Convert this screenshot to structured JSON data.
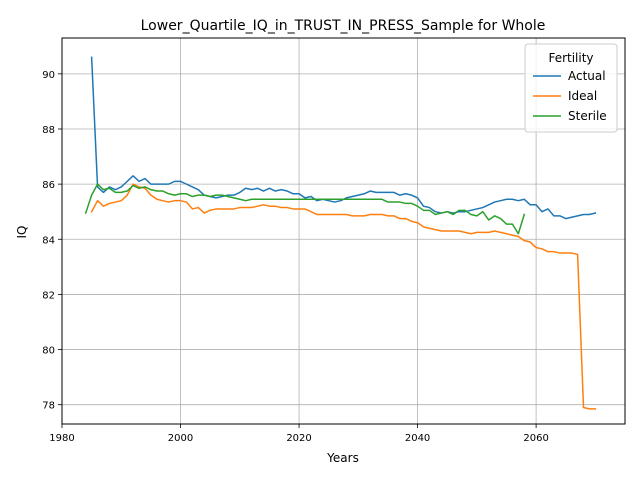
{
  "chart_data": {
    "type": "line",
    "title": "Lower_Quartile_IQ_in_TRUST_IN_PRESS_Sample for Whole",
    "xlabel": "Years",
    "ylabel": "IQ",
    "xlim": [
      1980,
      2075
    ],
    "ylim": [
      77.3,
      91.3
    ],
    "xticks": [
      1980,
      2000,
      2020,
      2040,
      2060
    ],
    "yticks": [
      78,
      80,
      82,
      84,
      86,
      88,
      90
    ],
    "grid": true,
    "legend": {
      "title": "Fertility",
      "placement": "top-right"
    },
    "series": [
      {
        "name": "Actual",
        "color": "#1f77b4",
        "points": [
          [
            1985,
            90.6
          ],
          [
            1986,
            85.9
          ],
          [
            1987,
            85.7
          ],
          [
            1988,
            85.9
          ],
          [
            1989,
            85.8
          ],
          [
            1990,
            85.9
          ],
          [
            1991,
            86.1
          ],
          [
            1992,
            86.3
          ],
          [
            1993,
            86.1
          ],
          [
            1994,
            86.2
          ],
          [
            1995,
            86.0
          ],
          [
            1996,
            86.0
          ],
          [
            1997,
            86.0
          ],
          [
            1998,
            86.0
          ],
          [
            1999,
            86.1
          ],
          [
            2000,
            86.1
          ],
          [
            2001,
            86.0
          ],
          [
            2002,
            85.9
          ],
          [
            2003,
            85.8
          ],
          [
            2004,
            85.6
          ],
          [
            2005,
            85.55
          ],
          [
            2006,
            85.5
          ],
          [
            2007,
            85.55
          ],
          [
            2008,
            85.6
          ],
          [
            2009,
            85.6
          ],
          [
            2010,
            85.7
          ],
          [
            2011,
            85.85
          ],
          [
            2012,
            85.8
          ],
          [
            2013,
            85.85
          ],
          [
            2014,
            85.75
          ],
          [
            2015,
            85.85
          ],
          [
            2016,
            85.75
          ],
          [
            2017,
            85.8
          ],
          [
            2018,
            85.75
          ],
          [
            2019,
            85.65
          ],
          [
            2020,
            85.65
          ],
          [
            2021,
            85.5
          ],
          [
            2022,
            85.55
          ],
          [
            2023,
            85.4
          ],
          [
            2024,
            85.45
          ],
          [
            2025,
            85.4
          ],
          [
            2026,
            85.35
          ],
          [
            2027,
            85.4
          ],
          [
            2028,
            85.5
          ],
          [
            2029,
            85.55
          ],
          [
            2030,
            85.6
          ],
          [
            2031,
            85.65
          ],
          [
            2032,
            85.75
          ],
          [
            2033,
            85.7
          ],
          [
            2034,
            85.7
          ],
          [
            2035,
            85.7
          ],
          [
            2036,
            85.7
          ],
          [
            2037,
            85.6
          ],
          [
            2038,
            85.65
          ],
          [
            2039,
            85.6
          ],
          [
            2040,
            85.5
          ],
          [
            2041,
            85.2
          ],
          [
            2042,
            85.15
          ],
          [
            2043,
            85.0
          ],
          [
            2044,
            84.95
          ],
          [
            2045,
            85.0
          ],
          [
            2046,
            84.95
          ],
          [
            2047,
            85.0
          ],
          [
            2048,
            85.0
          ],
          [
            2049,
            85.05
          ],
          [
            2050,
            85.1
          ],
          [
            2051,
            85.15
          ],
          [
            2052,
            85.25
          ],
          [
            2053,
            85.35
          ],
          [
            2054,
            85.4
          ],
          [
            2055,
            85.45
          ],
          [
            2056,
            85.45
          ],
          [
            2057,
            85.4
          ],
          [
            2058,
            85.45
          ],
          [
            2059,
            85.25
          ],
          [
            2060,
            85.25
          ],
          [
            2061,
            85.0
          ],
          [
            2062,
            85.1
          ],
          [
            2063,
            84.85
          ],
          [
            2064,
            84.85
          ],
          [
            2065,
            84.75
          ],
          [
            2066,
            84.8
          ],
          [
            2067,
            84.85
          ],
          [
            2068,
            84.9
          ],
          [
            2069,
            84.9
          ],
          [
            2070,
            84.95
          ]
        ]
      },
      {
        "name": "Ideal",
        "color": "#ff7f0e",
        "points": [
          [
            1985,
            85.0
          ],
          [
            1986,
            85.4
          ],
          [
            1987,
            85.2
          ],
          [
            1988,
            85.3
          ],
          [
            1989,
            85.35
          ],
          [
            1990,
            85.4
          ],
          [
            1991,
            85.6
          ],
          [
            1992,
            86.0
          ],
          [
            1993,
            85.9
          ],
          [
            1994,
            85.85
          ],
          [
            1995,
            85.6
          ],
          [
            1996,
            85.45
          ],
          [
            1997,
            85.4
          ],
          [
            1998,
            85.35
          ],
          [
            1999,
            85.4
          ],
          [
            2000,
            85.4
          ],
          [
            2001,
            85.35
          ],
          [
            2002,
            85.1
          ],
          [
            2003,
            85.15
          ],
          [
            2004,
            84.95
          ],
          [
            2005,
            85.05
          ],
          [
            2006,
            85.1
          ],
          [
            2007,
            85.1
          ],
          [
            2008,
            85.1
          ],
          [
            2009,
            85.1
          ],
          [
            2010,
            85.15
          ],
          [
            2011,
            85.15
          ],
          [
            2012,
            85.15
          ],
          [
            2013,
            85.2
          ],
          [
            2014,
            85.25
          ],
          [
            2015,
            85.2
          ],
          [
            2016,
            85.2
          ],
          [
            2017,
            85.15
          ],
          [
            2018,
            85.15
          ],
          [
            2019,
            85.1
          ],
          [
            2020,
            85.1
          ],
          [
            2021,
            85.1
          ],
          [
            2022,
            85.0
          ],
          [
            2023,
            84.9
          ],
          [
            2024,
            84.9
          ],
          [
            2025,
            84.9
          ],
          [
            2026,
            84.9
          ],
          [
            2027,
            84.9
          ],
          [
            2028,
            84.9
          ],
          [
            2029,
            84.85
          ],
          [
            2030,
            84.85
          ],
          [
            2031,
            84.85
          ],
          [
            2032,
            84.9
          ],
          [
            2033,
            84.9
          ],
          [
            2034,
            84.9
          ],
          [
            2035,
            84.85
          ],
          [
            2036,
            84.85
          ],
          [
            2037,
            84.75
          ],
          [
            2038,
            84.75
          ],
          [
            2039,
            84.65
          ],
          [
            2040,
            84.6
          ],
          [
            2041,
            84.45
          ],
          [
            2042,
            84.4
          ],
          [
            2043,
            84.35
          ],
          [
            2044,
            84.3
          ],
          [
            2045,
            84.3
          ],
          [
            2046,
            84.3
          ],
          [
            2047,
            84.3
          ],
          [
            2048,
            84.25
          ],
          [
            2049,
            84.2
          ],
          [
            2050,
            84.25
          ],
          [
            2051,
            84.25
          ],
          [
            2052,
            84.25
          ],
          [
            2053,
            84.3
          ],
          [
            2054,
            84.25
          ],
          [
            2055,
            84.2
          ],
          [
            2056,
            84.15
          ],
          [
            2057,
            84.1
          ],
          [
            2058,
            83.95
          ],
          [
            2059,
            83.9
          ],
          [
            2060,
            83.7
          ],
          [
            2061,
            83.65
          ],
          [
            2062,
            83.55
          ],
          [
            2063,
            83.55
          ],
          [
            2064,
            83.5
          ],
          [
            2065,
            83.5
          ],
          [
            2066,
            83.5
          ],
          [
            2067,
            83.45
          ],
          [
            2068,
            77.9
          ],
          [
            2069,
            77.85
          ],
          [
            2070,
            77.85
          ]
        ]
      },
      {
        "name": "Sterile",
        "color": "#2ca02c",
        "points": [
          [
            1984,
            84.95
          ],
          [
            1985,
            85.6
          ],
          [
            1986,
            86.0
          ],
          [
            1987,
            85.8
          ],
          [
            1988,
            85.85
          ],
          [
            1989,
            85.7
          ],
          [
            1990,
            85.7
          ],
          [
            1991,
            85.75
          ],
          [
            1992,
            85.95
          ],
          [
            1993,
            85.85
          ],
          [
            1994,
            85.9
          ],
          [
            1995,
            85.8
          ],
          [
            1996,
            85.75
          ],
          [
            1997,
            85.75
          ],
          [
            1998,
            85.65
          ],
          [
            1999,
            85.6
          ],
          [
            2000,
            85.65
          ],
          [
            2001,
            85.65
          ],
          [
            2002,
            85.55
          ],
          [
            2003,
            85.6
          ],
          [
            2004,
            85.6
          ],
          [
            2005,
            85.55
          ],
          [
            2006,
            85.6
          ],
          [
            2007,
            85.6
          ],
          [
            2008,
            85.55
          ],
          [
            2009,
            85.5
          ],
          [
            2010,
            85.45
          ],
          [
            2011,
            85.4
          ],
          [
            2012,
            85.45
          ],
          [
            2013,
            85.45
          ],
          [
            2014,
            85.45
          ],
          [
            2015,
            85.45
          ],
          [
            2016,
            85.45
          ],
          [
            2017,
            85.45
          ],
          [
            2018,
            85.45
          ],
          [
            2019,
            85.45
          ],
          [
            2020,
            85.45
          ],
          [
            2021,
            85.45
          ],
          [
            2022,
            85.45
          ],
          [
            2023,
            85.45
          ],
          [
            2024,
            85.45
          ],
          [
            2025,
            85.45
          ],
          [
            2026,
            85.45
          ],
          [
            2027,
            85.45
          ],
          [
            2028,
            85.45
          ],
          [
            2029,
            85.45
          ],
          [
            2030,
            85.45
          ],
          [
            2031,
            85.45
          ],
          [
            2032,
            85.45
          ],
          [
            2033,
            85.45
          ],
          [
            2034,
            85.45
          ],
          [
            2035,
            85.35
          ],
          [
            2036,
            85.35
          ],
          [
            2037,
            85.35
          ],
          [
            2038,
            85.3
          ],
          [
            2039,
            85.3
          ],
          [
            2040,
            85.2
          ],
          [
            2041,
            85.05
          ],
          [
            2042,
            85.05
          ],
          [
            2043,
            84.9
          ],
          [
            2044,
            84.95
          ],
          [
            2045,
            85.0
          ],
          [
            2046,
            84.9
          ],
          [
            2047,
            85.05
          ],
          [
            2048,
            85.05
          ],
          [
            2049,
            84.9
          ],
          [
            2050,
            84.85
          ],
          [
            2051,
            85.0
          ],
          [
            2052,
            84.7
          ],
          [
            2053,
            84.85
          ],
          [
            2054,
            84.75
          ],
          [
            2055,
            84.55
          ],
          [
            2056,
            84.55
          ],
          [
            2057,
            84.2
          ],
          [
            2058,
            84.9
          ]
        ]
      }
    ]
  }
}
